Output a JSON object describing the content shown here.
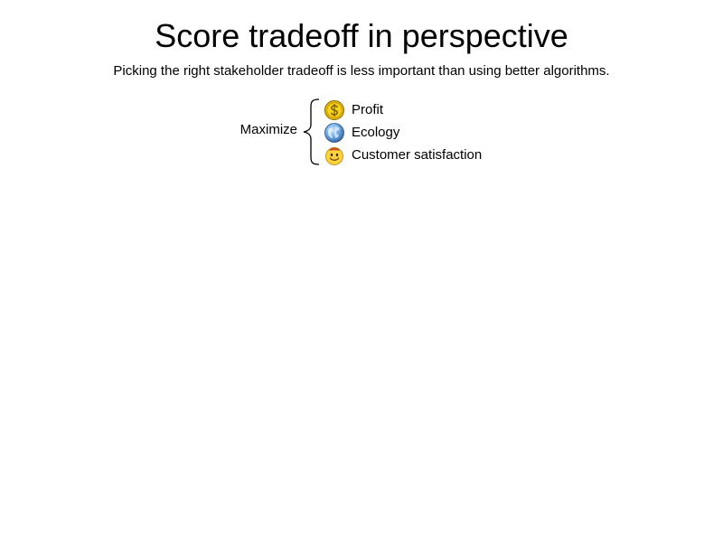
{
  "slide": {
    "title": "Score tradeoff in perspective",
    "subtitle": "Picking the right stakeholder tradeoff is less important than using better algorithms."
  },
  "diagram": {
    "group_label": "Maximize",
    "items": [
      {
        "label": "Profit",
        "icon": "dollar-coin-icon"
      },
      {
        "label": "Ecology",
        "icon": "globe-icon"
      },
      {
        "label": "Customer satisfaction",
        "icon": "smiley-face-icon"
      }
    ]
  }
}
